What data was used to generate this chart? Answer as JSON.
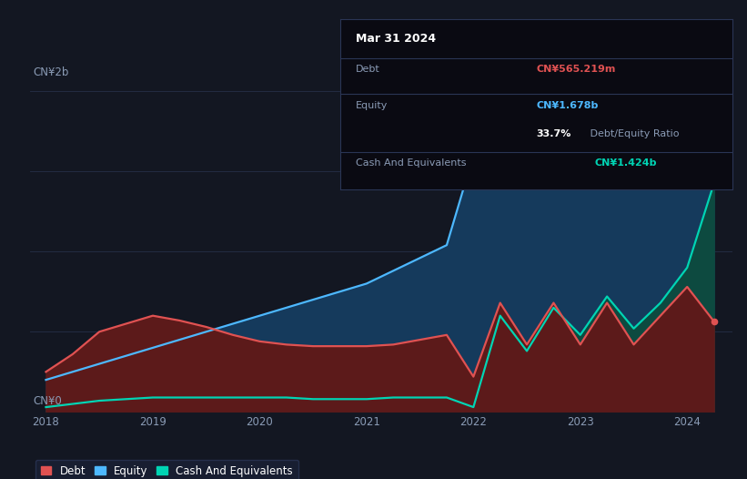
{
  "bg_color": "#131722",
  "plot_bg_color": "#131722",
  "grid_color": "#253048",
  "y_label_top": "CN¥2b",
  "y_label_bottom": "CN¥0",
  "x_ticks": [
    2018,
    2019,
    2020,
    2021,
    2022,
    2023,
    2024
  ],
  "debt_color": "#e05252",
  "equity_color": "#4db8ff",
  "cash_color": "#00d4b4",
  "debt_fill_color": "#5c1a1a",
  "equity_fill_color": "#153a5c",
  "cash_fill_color": "#0d4a40",
  "years": [
    2018.0,
    2018.25,
    2018.5,
    2018.75,
    2019.0,
    2019.25,
    2019.5,
    2019.75,
    2020.0,
    2020.25,
    2020.5,
    2020.75,
    2021.0,
    2021.25,
    2021.5,
    2021.75,
    2022.0,
    2022.25,
    2022.5,
    2022.75,
    2023.0,
    2023.25,
    2023.5,
    2023.75,
    2024.0,
    2024.25
  ],
  "debt": [
    0.25,
    0.36,
    0.5,
    0.55,
    0.6,
    0.57,
    0.53,
    0.48,
    0.44,
    0.42,
    0.41,
    0.41,
    0.41,
    0.42,
    0.45,
    0.48,
    0.22,
    0.68,
    0.42,
    0.68,
    0.42,
    0.68,
    0.42,
    0.6,
    0.78,
    0.565
  ],
  "equity": [
    0.2,
    0.25,
    0.3,
    0.35,
    0.4,
    0.45,
    0.5,
    0.55,
    0.6,
    0.65,
    0.7,
    0.75,
    0.8,
    0.88,
    0.96,
    1.04,
    1.6,
    1.68,
    1.72,
    1.76,
    1.8,
    1.86,
    1.9,
    1.94,
    1.98,
    1.678
  ],
  "cash": [
    0.03,
    0.05,
    0.07,
    0.08,
    0.09,
    0.09,
    0.09,
    0.09,
    0.09,
    0.09,
    0.08,
    0.08,
    0.08,
    0.09,
    0.09,
    0.09,
    0.03,
    0.6,
    0.38,
    0.65,
    0.48,
    0.72,
    0.52,
    0.68,
    0.9,
    1.424
  ],
  "ylim": [
    0,
    2.15
  ],
  "xlim": [
    2017.85,
    2024.42
  ],
  "legend_labels": [
    "Debt",
    "Equity",
    "Cash And Equivalents"
  ],
  "legend_colors": [
    "#e05252",
    "#4db8ff",
    "#00d4b4"
  ],
  "tooltip": {
    "title": "Mar 31 2024",
    "debt_label": "Debt",
    "debt_value": "CN¥565.219m",
    "equity_label": "Equity",
    "equity_value": "CN¥1.678b",
    "ratio_pct": "33.7%",
    "ratio_label": " Debt/Equity Ratio",
    "cash_label": "Cash And Equivalents",
    "cash_value": "CN¥1.424b"
  }
}
